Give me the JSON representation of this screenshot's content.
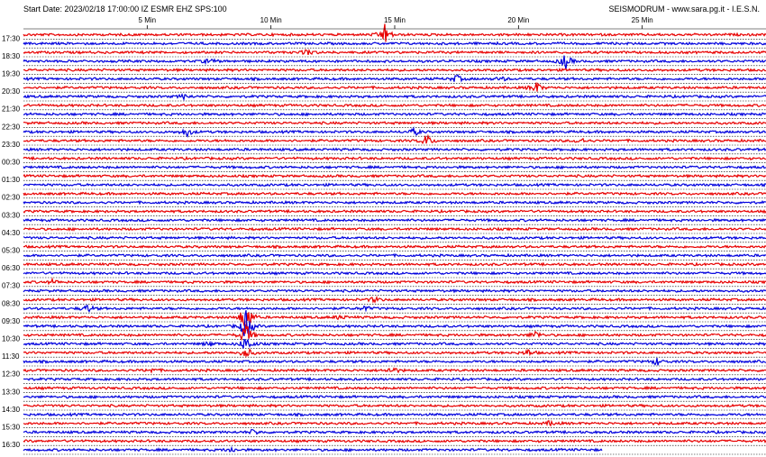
{
  "header": {
    "left": "Start Date: 2023/02/18 17:00:00 IZ ESMR EHZ SPS:100",
    "right": "SEISMODRUM - www.sara.pg.it - I.E.S.N."
  },
  "colors": {
    "trace_a": "#e80000",
    "trace_b": "#0000dd",
    "dotted_line": "#000000",
    "background": "#ffffff"
  },
  "chart_data": {
    "type": "line",
    "title": "",
    "xlabel": "",
    "ylabel": "",
    "x_unit": "Min",
    "xlim": [
      0,
      30
    ],
    "x_ticks": [
      5,
      10,
      15,
      20,
      25
    ],
    "x_tick_labels": [
      "5 Min",
      "10 Min",
      "15 Min",
      "20 Min",
      "25 Min"
    ],
    "row_minutes": 30,
    "row_count": 48,
    "last_row_end_minute": 23.4,
    "time_labels": [
      "17:30",
      "18:30",
      "19:30",
      "20:30",
      "21:30",
      "22:30",
      "23:30",
      "00:30",
      "01:30",
      "02:30",
      "03:30",
      "04:30",
      "05:30",
      "06:30",
      "07:30",
      "08:30",
      "09:30",
      "10:30",
      "11:30",
      "12:30",
      "13:30",
      "14:30",
      "15:30",
      "16:30"
    ],
    "events": [
      {
        "row": 0,
        "minute": 14.6,
        "amp": 2.6
      },
      {
        "row": 2,
        "minute": 11.5,
        "amp": 0.8
      },
      {
        "row": 3,
        "minute": 7.5,
        "amp": 0.7
      },
      {
        "row": 3,
        "minute": 21.9,
        "amp": 2.0
      },
      {
        "row": 5,
        "minute": 17.5,
        "amp": 1.0
      },
      {
        "row": 5,
        "minute": 19.3,
        "amp": 0.5
      },
      {
        "row": 6,
        "minute": 20.7,
        "amp": 1.6
      },
      {
        "row": 7,
        "minute": 6.5,
        "amp": 0.6
      },
      {
        "row": 11,
        "minute": 6.6,
        "amp": 1.2
      },
      {
        "row": 11,
        "minute": 15.8,
        "amp": 0.9
      },
      {
        "row": 12,
        "minute": 16.3,
        "amp": 1.6
      },
      {
        "row": 12,
        "minute": 22.5,
        "amp": 0.8
      },
      {
        "row": 28,
        "minute": 1.2,
        "amp": 0.6
      },
      {
        "row": 30,
        "minute": 14.2,
        "amp": 0.7
      },
      {
        "row": 31,
        "minute": 2.6,
        "amp": 1.0
      },
      {
        "row": 31,
        "minute": 13.8,
        "amp": 0.6
      },
      {
        "row": 32,
        "minute": 9.0,
        "amp": 4.8
      },
      {
        "row": 32,
        "minute": 12.8,
        "amp": 0.6
      },
      {
        "row": 33,
        "minute": 9.0,
        "amp": 4.2
      },
      {
        "row": 34,
        "minute": 9.0,
        "amp": 3.2
      },
      {
        "row": 34,
        "minute": 20.7,
        "amp": 1.0
      },
      {
        "row": 35,
        "minute": 9.0,
        "amp": 2.2
      },
      {
        "row": 35,
        "minute": 7.5,
        "amp": 0.6
      },
      {
        "row": 36,
        "minute": 9.0,
        "amp": 1.5
      },
      {
        "row": 36,
        "minute": 20.4,
        "amp": 0.8
      },
      {
        "row": 37,
        "minute": 25.6,
        "amp": 0.9
      },
      {
        "row": 38,
        "minute": 14.9,
        "amp": 1.0
      },
      {
        "row": 38,
        "minute": 5.2,
        "amp": 0.5
      },
      {
        "row": 44,
        "minute": 21.3,
        "amp": 0.6
      },
      {
        "row": 45,
        "minute": 9.3,
        "amp": 0.7
      },
      {
        "row": 47,
        "minute": 8.4,
        "amp": 0.6
      }
    ]
  }
}
